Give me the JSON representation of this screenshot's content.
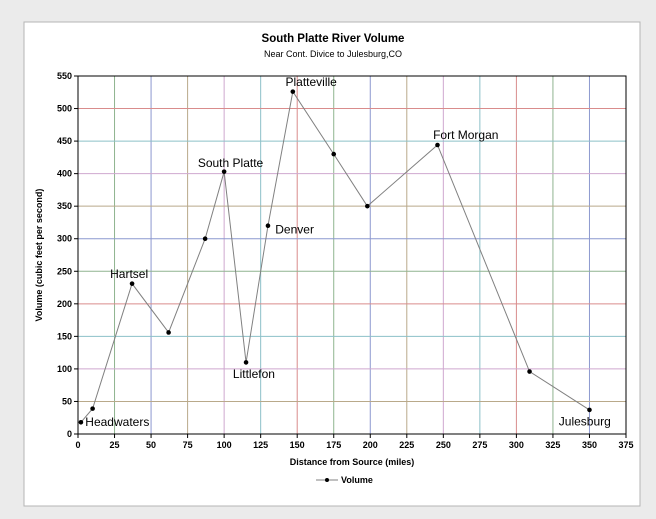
{
  "chart_data": {
    "type": "line",
    "title": "South Platte River Volume",
    "subtitle": "Near Cont. Divice to Julesburg,CO",
    "xlabel": "Distance from Source (miles)",
    "ylabel": "Volume (cubic feet per second)",
    "xlim": [
      0,
      375
    ],
    "ylim": [
      0,
      550
    ],
    "xticks": [
      0,
      25,
      50,
      75,
      100,
      125,
      150,
      175,
      200,
      225,
      250,
      275,
      300,
      325,
      350,
      375
    ],
    "yticks": [
      0,
      50,
      100,
      150,
      200,
      250,
      300,
      350,
      400,
      450,
      500,
      550
    ],
    "grid": true,
    "legend_position": "bottom",
    "series": [
      {
        "name": "Volume",
        "color": "#808080",
        "marker_color": "#000000",
        "points": [
          {
            "x": 2,
            "y": 18
          },
          {
            "x": 10,
            "y": 39
          },
          {
            "x": 37,
            "y": 231
          },
          {
            "x": 62,
            "y": 156
          },
          {
            "x": 87,
            "y": 300
          },
          {
            "x": 100,
            "y": 403
          },
          {
            "x": 115,
            "y": 110
          },
          {
            "x": 130,
            "y": 320
          },
          {
            "x": 147,
            "y": 526
          },
          {
            "x": 175,
            "y": 430
          },
          {
            "x": 198,
            "y": 350
          },
          {
            "x": 246,
            "y": 444
          },
          {
            "x": 309,
            "y": 96
          },
          {
            "x": 350,
            "y": 37
          }
        ]
      }
    ],
    "annotations": [
      {
        "text": "Headwaters",
        "x": 5,
        "y": 12
      },
      {
        "text": "Hartsel",
        "x": 22,
        "y": 240
      },
      {
        "text": "South Platte",
        "x": 82,
        "y": 410
      },
      {
        "text": "Littlefon",
        "x": 106,
        "y": 86
      },
      {
        "text": "Denver",
        "x": 135,
        "y": 308
      },
      {
        "text": "Platteville",
        "x": 142,
        "y": 535
      },
      {
        "text": "Fort Morgan",
        "x": 243,
        "y": 453
      },
      {
        "text": "Julesburg",
        "x": 329,
        "y": 13
      }
    ]
  }
}
